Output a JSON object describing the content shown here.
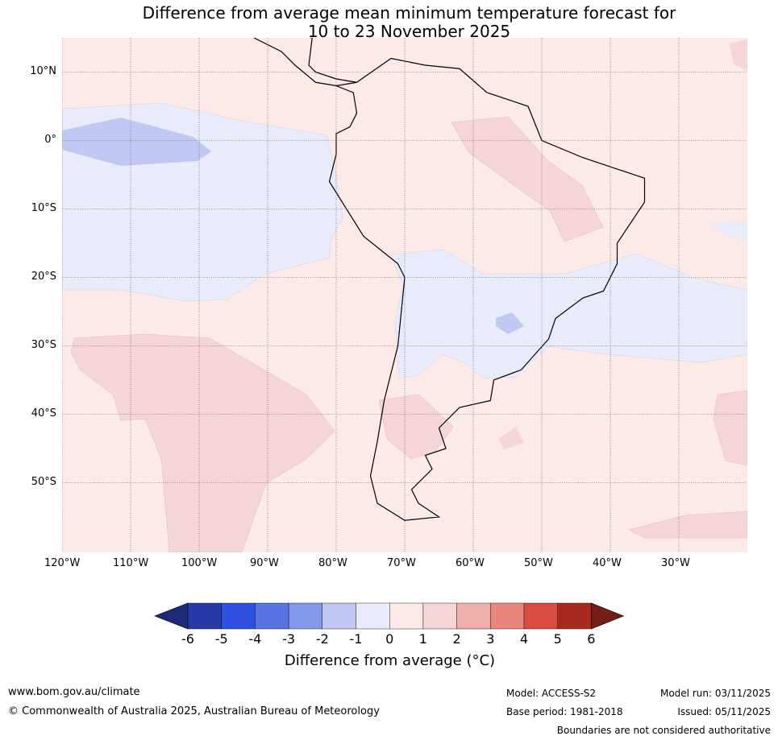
{
  "title": {
    "line1": "Difference from average mean minimum temperature forecast for",
    "line2": "10 to 23 November 2025"
  },
  "map": {
    "lon_range": [
      -120,
      -20
    ],
    "lat_range": [
      -60,
      15
    ],
    "lon_ticks": [
      {
        "v": -120,
        "label": "120°W"
      },
      {
        "v": -110,
        "label": "110°W"
      },
      {
        "v": -100,
        "label": "100°W"
      },
      {
        "v": -90,
        "label": "90°W"
      },
      {
        "v": -80,
        "label": "80°W"
      },
      {
        "v": -70,
        "label": "70°W"
      },
      {
        "v": -60,
        "label": "60°W"
      },
      {
        "v": -50,
        "label": "50°W"
      },
      {
        "v": -40,
        "label": "40°W"
      },
      {
        "v": -30,
        "label": "30°W"
      }
    ],
    "lat_ticks": [
      {
        "v": 10,
        "label": "10°N"
      },
      {
        "v": 0,
        "label": "0°"
      },
      {
        "v": -10,
        "label": "10°S"
      },
      {
        "v": -20,
        "label": "20°S"
      },
      {
        "v": -30,
        "label": "30°S"
      },
      {
        "v": -40,
        "label": "40°S"
      },
      {
        "v": -50,
        "label": "50°S"
      }
    ]
  },
  "colorbar": {
    "labels": [
      "-6",
      "-5",
      "-4",
      "-3",
      "-2",
      "-1",
      "0",
      "1",
      "2",
      "3",
      "4",
      "5",
      "6"
    ],
    "colors": [
      "#263ba8",
      "#2f4fde",
      "#5874e2",
      "#8498ea",
      "#c1c9f3",
      "#e8ebfa",
      "#fbeae8",
      "#f5d5d5",
      "#eeafaa",
      "#e8867f",
      "#da4b41",
      "#a72a21"
    ],
    "under_color": "#1d2a77",
    "over_color": "#741c16",
    "title": "Difference from average (°C)"
  },
  "footer": {
    "url": "www.bom.gov.au/climate",
    "copyright": "© Commonwealth of Australia 2025, Australian Bureau of Meteorology",
    "model": "Model: ACCESS-S2",
    "base_period": "Base period: 1981-2018",
    "model_run": "Model run: 03/11/2025",
    "issued": "Issued: 05/11/2025",
    "disclaimer": "Boundaries are not considered authoritative"
  }
}
